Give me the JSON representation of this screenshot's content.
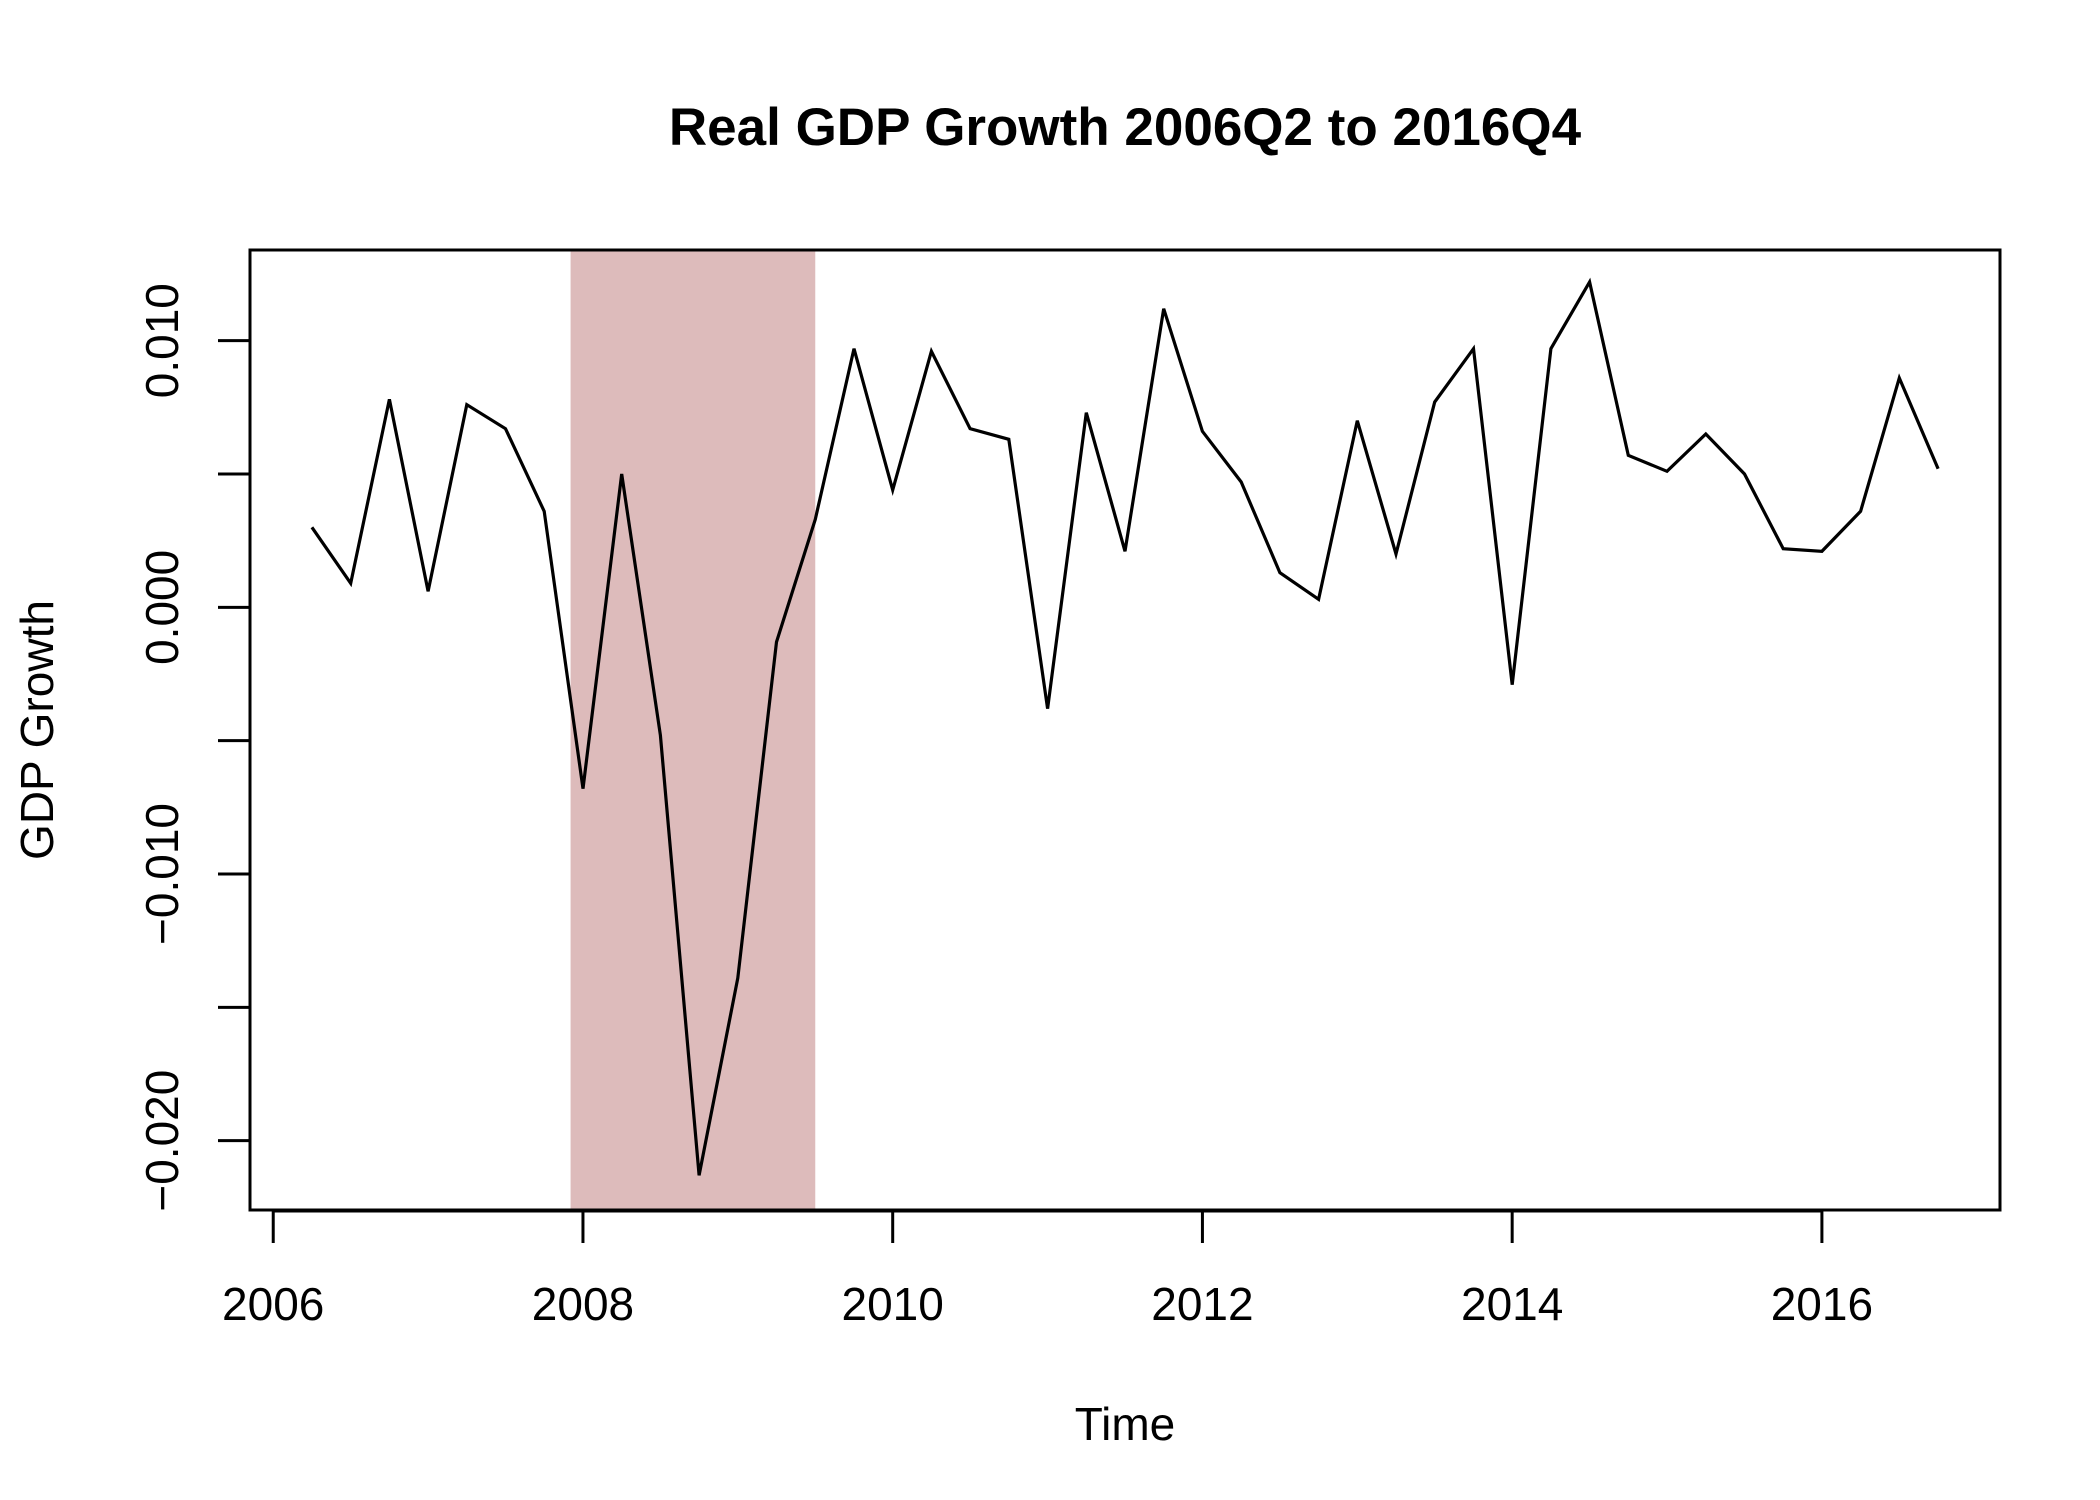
{
  "chart_data": {
    "type": "line",
    "title": "Real GDP Growth 2006Q2 to 2016Q4",
    "xlabel": "Time",
    "ylabel": "GDP Growth",
    "xlim": [
      2005.85,
      2017.15
    ],
    "ylim": [
      -0.0226,
      0.0134
    ],
    "x_ticks": [
      2006,
      2008,
      2010,
      2012,
      2014,
      2016
    ],
    "x_tick_labels": [
      "2006",
      "2008",
      "2010",
      "2012",
      "2014",
      "2016"
    ],
    "y_ticks": [
      -0.02,
      -0.015,
      -0.01,
      -0.005,
      0.0,
      0.005,
      0.01
    ],
    "y_tick_labels": [
      "−0.020",
      "",
      "−0.010",
      "",
      "0.000",
      "",
      "0.010"
    ],
    "grid": false,
    "recession_shading": {
      "start": 2007.92,
      "end": 2009.5,
      "color": "#ddbbbb"
    },
    "series": [
      {
        "color": "#000000",
        "x": [
          2006.25,
          2006.5,
          2006.75,
          2007.0,
          2007.25,
          2007.5,
          2007.75,
          2008.0,
          2008.25,
          2008.5,
          2008.75,
          2009.0,
          2009.25,
          2009.5,
          2009.75,
          2010.0,
          2010.25,
          2010.5,
          2010.75,
          2011.0,
          2011.25,
          2011.5,
          2011.75,
          2012.0,
          2012.25,
          2012.5,
          2012.75,
          2013.0,
          2013.25,
          2013.5,
          2013.75,
          2014.0,
          2014.25,
          2014.5,
          2014.75,
          2015.0,
          2015.25,
          2015.5,
          2015.75,
          2016.0,
          2016.25,
          2016.5,
          2016.75
        ],
        "values": [
          0.003,
          0.0009,
          0.0078,
          0.0006,
          0.0076,
          0.0067,
          0.0036,
          -0.0068,
          0.005,
          -0.0048,
          -0.0213,
          -0.0139,
          -0.0013,
          0.0033,
          0.0097,
          0.0044,
          0.0096,
          0.0067,
          0.0063,
          -0.0038,
          0.0073,
          0.0021,
          0.0112,
          0.0066,
          0.0047,
          0.0013,
          0.0003,
          0.007,
          0.002,
          0.0077,
          0.0097,
          -0.0029,
          0.0097,
          0.0122,
          0.0057,
          0.0051,
          0.0065,
          0.005,
          0.0022,
          0.0021,
          0.0036,
          0.0086,
          0.0052
        ]
      }
    ]
  }
}
